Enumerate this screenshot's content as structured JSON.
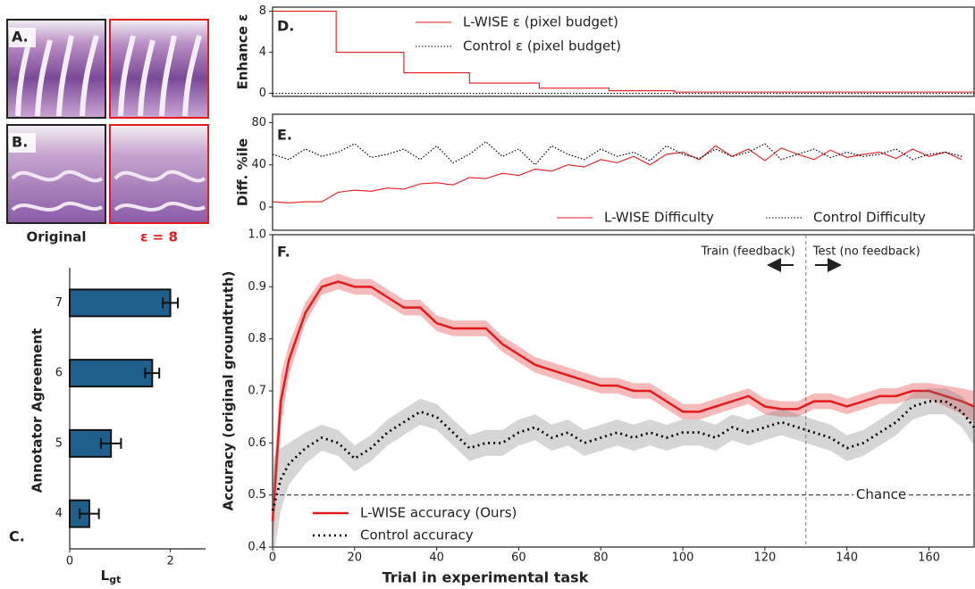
{
  "image_panels": {
    "rows": [
      {
        "label": "A."
      },
      {
        "label": "B."
      }
    ],
    "columns": [
      "Original",
      "ε = 8"
    ]
  },
  "chart_data": [
    {
      "type": "bar",
      "orientation": "horizontal",
      "panel_label": "C.",
      "ylabel": "Annotator Agreement",
      "xlabel": {
        "main": "L",
        "sub": "gt"
      },
      "categories": [
        "4",
        "5",
        "6",
        "7"
      ],
      "values": [
        0.39,
        0.82,
        1.64,
        2.0
      ],
      "errors": [
        0.19,
        0.2,
        0.14,
        0.15
      ],
      "color": "#1f5f8b",
      "xlim": [
        0,
        2.7
      ],
      "xticks": [
        0,
        2
      ]
    },
    {
      "type": "line",
      "panel_label": "D.",
      "ylabel": "Enhance ε",
      "xlim": [
        0,
        171
      ],
      "ylim": [
        -0.3,
        8.4
      ],
      "yticks": [
        0,
        4,
        8
      ],
      "legend": "upper center",
      "series": [
        {
          "name": "L-WISE ε (pixel budget)",
          "color": "#e41a1c",
          "style": "solid",
          "x": [
            0,
            15.5,
            15.5,
            32,
            32,
            48,
            48,
            65,
            65,
            82,
            82,
            98,
            98,
            171
          ],
          "values": [
            8,
            8,
            4,
            4,
            2,
            2,
            1,
            1,
            0.5,
            0.5,
            0.25,
            0.25,
            0.125,
            0.125
          ]
        },
        {
          "name": "Control ε (pixel budget)",
          "color": "#000000",
          "style": "dotted",
          "x": [
            0,
            171
          ],
          "values": [
            0,
            0
          ]
        }
      ]
    },
    {
      "type": "line",
      "panel_label": "E.",
      "ylabel": "Diff. %ile",
      "xlim": [
        0,
        171
      ],
      "ylim": [
        -22,
        88
      ],
      "yticks": [
        0,
        40,
        80
      ],
      "legend": "lower right",
      "series": [
        {
          "name": "L-WISE Difficulty",
          "color": "#e41a1c",
          "style": "solid",
          "x": [
            0,
            4,
            8,
            12,
            16,
            20,
            24,
            28,
            32,
            36,
            40,
            44,
            48,
            52,
            56,
            60,
            64,
            68,
            72,
            76,
            80,
            84,
            88,
            92,
            96,
            100,
            104,
            108,
            112,
            116,
            120,
            124,
            128,
            132,
            136,
            140,
            144,
            148,
            152,
            156,
            160,
            164,
            168
          ],
          "values": [
            5,
            4,
            5,
            5,
            14,
            16,
            15,
            18,
            17,
            22,
            23,
            21,
            28,
            27,
            32,
            30,
            36,
            34,
            40,
            38,
            45,
            42,
            48,
            40,
            50,
            52,
            45,
            58,
            48,
            55,
            44,
            56,
            50,
            45,
            54,
            47,
            50,
            52,
            46,
            55,
            48,
            52,
            45
          ]
        },
        {
          "name": "Control Difficulty",
          "color": "#000000",
          "style": "dotted",
          "x": [
            0,
            4,
            8,
            12,
            16,
            20,
            24,
            28,
            32,
            36,
            40,
            44,
            48,
            52,
            56,
            60,
            64,
            68,
            72,
            76,
            80,
            84,
            88,
            92,
            96,
            100,
            104,
            108,
            112,
            116,
            120,
            124,
            128,
            132,
            136,
            140,
            144,
            148,
            152,
            156,
            160,
            164,
            168
          ],
          "values": [
            50,
            45,
            55,
            48,
            52,
            60,
            47,
            50,
            55,
            45,
            58,
            42,
            50,
            62,
            48,
            55,
            40,
            58,
            50,
            45,
            55,
            48,
            52,
            44,
            58,
            50,
            46,
            55,
            48,
            52,
            60,
            45,
            50,
            55,
            47,
            52,
            48,
            50,
            55,
            45,
            50,
            52,
            48
          ]
        }
      ]
    },
    {
      "type": "line",
      "panel_label": "F.",
      "ylabel": "Accuracy (original groundtruth)",
      "xlabel": "Trial in experimental task",
      "xlim": [
        0,
        171
      ],
      "ylim": [
        0.4,
        1.0
      ],
      "xticks": [
        0,
        20,
        40,
        60,
        80,
        100,
        120,
        140,
        160
      ],
      "yticks": [
        0.4,
        0.5,
        0.6,
        0.7,
        0.8,
        0.9,
        {
          "value": 1,
          "label": "1.0"
        }
      ],
      "legend": "lower left",
      "hlines": [
        {
          "y": 0.5,
          "label": "Chance"
        }
      ],
      "vlines": [
        {
          "x": 130
        }
      ],
      "annotations": [
        {
          "text": "Train (feedback)"
        },
        {
          "text": "Test (no feedback)"
        }
      ],
      "series": [
        {
          "name": "L-WISE accuracy (Ours)",
          "color": "#e41a1c",
          "style": "solid",
          "x": [
            0,
            2,
            4,
            8,
            12,
            16,
            20,
            24,
            28,
            32,
            36,
            40,
            44,
            48,
            52,
            56,
            60,
            64,
            68,
            72,
            76,
            80,
            84,
            88,
            92,
            96,
            100,
            104,
            108,
            112,
            116,
            120,
            124,
            128,
            132,
            136,
            140,
            144,
            148,
            152,
            156,
            160,
            164,
            168,
            171
          ],
          "values": [
            0.45,
            0.68,
            0.76,
            0.85,
            0.9,
            0.91,
            0.9,
            0.9,
            0.88,
            0.86,
            0.86,
            0.83,
            0.82,
            0.82,
            0.82,
            0.79,
            0.77,
            0.75,
            0.74,
            0.73,
            0.72,
            0.71,
            0.71,
            0.7,
            0.7,
            0.68,
            0.66,
            0.66,
            0.67,
            0.68,
            0.69,
            0.67,
            0.665,
            0.665,
            0.68,
            0.68,
            0.67,
            0.68,
            0.69,
            0.69,
            0.7,
            0.7,
            0.69,
            0.68,
            0.67
          ],
          "errors": [
            0.06,
            0.05,
            0.03,
            0.02,
            0.015,
            0.015,
            0.015,
            0.015,
            0.015,
            0.015,
            0.015,
            0.015,
            0.015,
            0.015,
            0.015,
            0.015,
            0.015,
            0.015,
            0.015,
            0.015,
            0.015,
            0.015,
            0.015,
            0.015,
            0.015,
            0.015,
            0.015,
            0.015,
            0.015,
            0.015,
            0.015,
            0.015,
            0.015,
            0.015,
            0.015,
            0.015,
            0.015,
            0.015,
            0.015,
            0.015,
            0.015,
            0.015,
            0.02,
            0.025,
            0.03
          ]
        },
        {
          "name": "Control accuracy",
          "color": "#000000",
          "style": "dotted",
          "x": [
            0,
            2,
            4,
            8,
            12,
            16,
            20,
            24,
            28,
            32,
            36,
            40,
            44,
            48,
            52,
            56,
            60,
            64,
            68,
            72,
            76,
            80,
            84,
            88,
            92,
            96,
            100,
            104,
            108,
            112,
            116,
            120,
            124,
            128,
            132,
            136,
            140,
            144,
            148,
            152,
            156,
            160,
            164,
            168,
            171
          ],
          "values": [
            0.47,
            0.53,
            0.56,
            0.59,
            0.61,
            0.6,
            0.57,
            0.59,
            0.62,
            0.64,
            0.66,
            0.65,
            0.62,
            0.59,
            0.6,
            0.6,
            0.62,
            0.63,
            0.61,
            0.62,
            0.6,
            0.61,
            0.62,
            0.61,
            0.62,
            0.61,
            0.62,
            0.62,
            0.61,
            0.63,
            0.62,
            0.63,
            0.64,
            0.63,
            0.62,
            0.61,
            0.59,
            0.6,
            0.62,
            0.64,
            0.67,
            0.68,
            0.68,
            0.66,
            0.63
          ],
          "errors": [
            0.1,
            0.06,
            0.04,
            0.03,
            0.025,
            0.025,
            0.025,
            0.025,
            0.025,
            0.025,
            0.025,
            0.025,
            0.025,
            0.025,
            0.025,
            0.025,
            0.025,
            0.025,
            0.025,
            0.025,
            0.025,
            0.025,
            0.025,
            0.025,
            0.025,
            0.025,
            0.025,
            0.025,
            0.025,
            0.025,
            0.025,
            0.025,
            0.025,
            0.025,
            0.025,
            0.025,
            0.025,
            0.025,
            0.025,
            0.025,
            0.025,
            0.025,
            0.025,
            0.03,
            0.035
          ]
        }
      ]
    }
  ]
}
